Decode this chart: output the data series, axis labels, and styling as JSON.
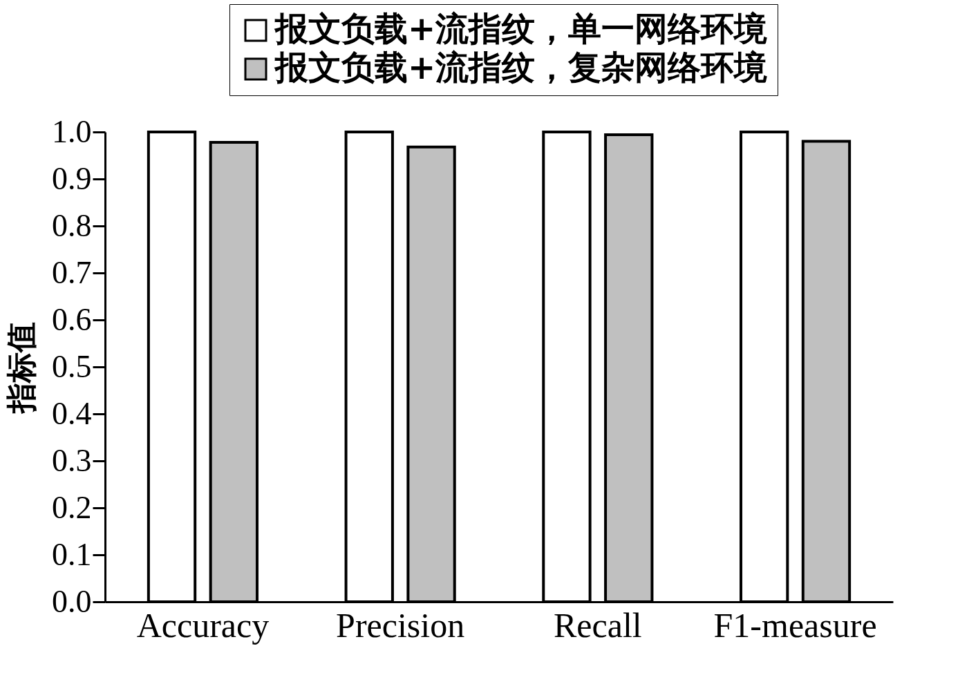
{
  "chart_data": {
    "type": "bar",
    "ylabel": "指标值",
    "categories": [
      "Accuracy",
      "Precision",
      "Recall",
      "F1-measure"
    ],
    "series": [
      {
        "name": "报文负载+流指纹，单一网络环境",
        "color": "#ffffff",
        "values": [
          1.0,
          1.0,
          1.0,
          1.0
        ]
      },
      {
        "name": "报文负载+流指纹，复杂网络环境",
        "color": "#c0c0c0",
        "values": [
          0.978,
          0.968,
          0.994,
          0.98
        ]
      }
    ],
    "ylim": [
      0,
      1.0
    ],
    "yticks": [
      {
        "value": 0,
        "label": "0.0"
      },
      {
        "value": 0.1,
        "label": "0.1"
      },
      {
        "value": 0.2,
        "label": "0.2"
      },
      {
        "value": 0.3,
        "label": "0.3"
      },
      {
        "value": 0.4,
        "label": "0.4"
      },
      {
        "value": 0.5,
        "label": "0.5"
      },
      {
        "value": 0.6,
        "label": "0.6"
      },
      {
        "value": 0.7,
        "label": "0.7"
      },
      {
        "value": 0.8,
        "label": "0.8"
      },
      {
        "value": 0.9,
        "label": "0.9"
      },
      {
        "value": 1.0,
        "label": "1.0"
      }
    ],
    "grid": false,
    "legend": "top right"
  }
}
